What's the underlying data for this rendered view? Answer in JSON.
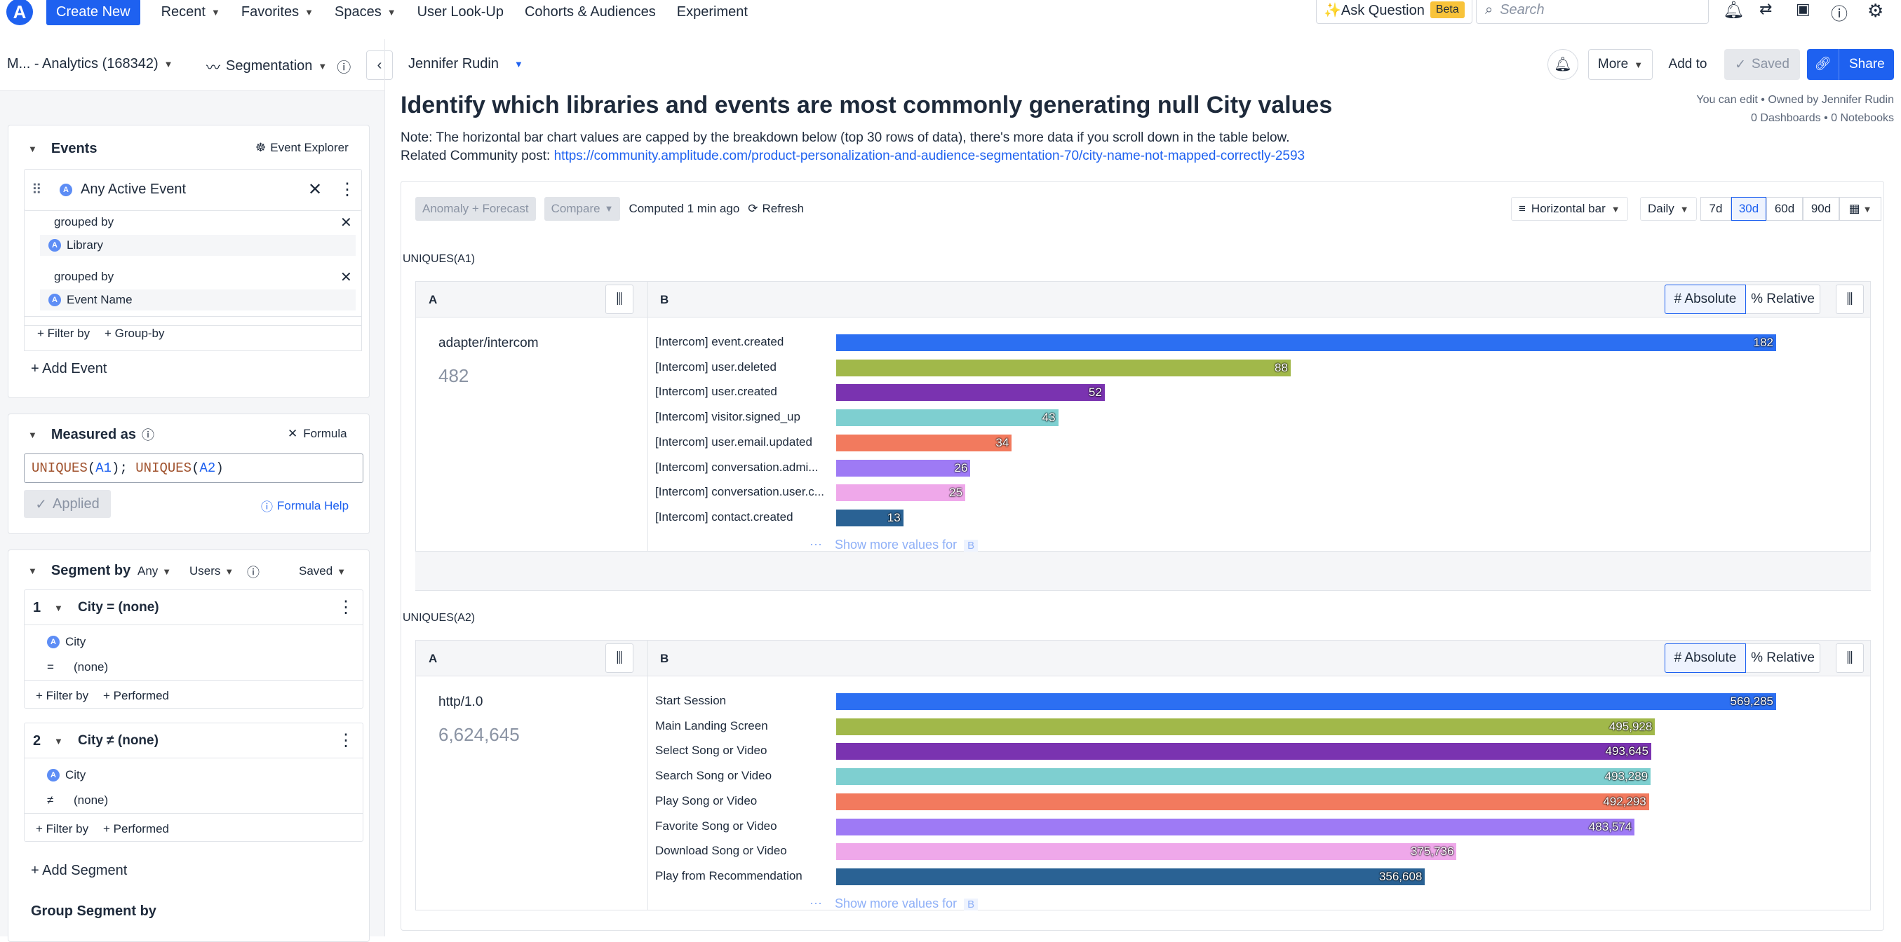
{
  "nav": {
    "logo_letter": "A",
    "create_label": "Create New",
    "items": [
      "Recent",
      "Favorites",
      "Spaces",
      "User Look-Up",
      "Cohorts & Audiences",
      "Experiment"
    ],
    "ask_label": "✨Ask Question",
    "beta_label": "Beta",
    "search_placeholder": "Search"
  },
  "breadcrumb": {
    "project": "M... - Analytics (168342)",
    "chart_type": "Segmentation",
    "owner": "Jennifer Rudin"
  },
  "header_actions": {
    "more": "More",
    "add_to": "Add to",
    "saved": "Saved",
    "share": "Share",
    "edit_info": "You can edit • Owned by Jennifer Rudin",
    "dashboards_info": "0 Dashboards • 0 Notebooks"
  },
  "events": {
    "title": "Events",
    "explorer": "Event Explorer",
    "event_name": "Any Active Event",
    "group1_label": "grouped by",
    "group1_value": "Library",
    "group2_label": "grouped by",
    "group2_value": "Event Name",
    "filter_by": "+ Filter by",
    "group_by": "+ Group-by",
    "add_event": "+ Add Event"
  },
  "measured": {
    "title": "Measured as",
    "formula_btn": "Formula",
    "formula_parts": [
      {
        "text": "UNIQUES",
        "color": "#a0522d"
      },
      {
        "text": "(",
        "color": "#1e2a3b"
      },
      {
        "text": "A1",
        "color": "#1e61f0"
      },
      {
        "text": "); ",
        "color": "#1e2a3b"
      },
      {
        "text": "UNIQUES",
        "color": "#a0522d"
      },
      {
        "text": "(",
        "color": "#1e2a3b"
      },
      {
        "text": "A2",
        "color": "#1e61f0"
      },
      {
        "text": ")",
        "color": "#1e2a3b"
      }
    ],
    "applied": "Applied",
    "help": "Formula Help"
  },
  "segment": {
    "title": "Segment by",
    "any": "Any",
    "users": "Users",
    "saved": "Saved",
    "segments": [
      {
        "num": "1",
        "name": "City = (none)",
        "prop": "City",
        "op": "=",
        "val": "(none)"
      },
      {
        "num": "2",
        "name": "City ≠ (none)",
        "prop": "City",
        "op": "≠",
        "val": "(none)"
      }
    ],
    "filter_by": "+ Filter by",
    "performed": "+ Performed",
    "add_segment": "+ Add Segment",
    "group_segment": "Group Segment by"
  },
  "main": {
    "title": "Identify which libraries and events are most commonly generating null City values",
    "note": "Note: The horizontal bar chart values are capped by the breakdown below (top 30 rows of data), there's more data if you scroll down in the table below.",
    "related_prefix": "Related Community post: ",
    "related_link": "https://community.amplitude.com/product-personalization-and-audience-segmentation-70/city-name-not-mapped-correctly-2593"
  },
  "toolbar": {
    "anomaly": "Anomaly + Forecast",
    "compare": "Compare",
    "computed": "Computed 1 min ago",
    "refresh": "Refresh",
    "chart_kind": "Horizontal bar",
    "interval": "Daily",
    "ranges": [
      "7d",
      "30d",
      "60d",
      "90d"
    ],
    "active_range": "30d"
  },
  "table_labels": {
    "col_a": "A",
    "col_b": "B",
    "absolute": "# Absolute",
    "relative": "% Relative",
    "show_more": "Show more values for",
    "show_more_tag": "B"
  },
  "chart_data": [
    {
      "type": "bar",
      "orientation": "horizontal",
      "title": "UNIQUES(A1)",
      "group_label": "adapter/intercom",
      "group_total": "482",
      "max": 182,
      "categories": [
        "[Intercom] event.created",
        "[Intercom] user.deleted",
        "[Intercom] user.created",
        "[Intercom] visitor.signed_up",
        "[Intercom] user.email.updated",
        "[Intercom] conversation.admi...",
        "[Intercom] conversation.user.c...",
        "[Intercom] contact.created"
      ],
      "values": [
        182,
        88,
        52,
        43,
        34,
        26,
        25,
        13
      ],
      "labels": [
        "182",
        "88",
        "52",
        "43",
        "34",
        "26",
        "25",
        "13"
      ],
      "colors": [
        "#2c6ff2",
        "#a1b84a",
        "#7a33b0",
        "#7ecfd0",
        "#f27a5e",
        "#9e7af5",
        "#efa8ea",
        "#2a6294"
      ]
    },
    {
      "type": "bar",
      "orientation": "horizontal",
      "title": "UNIQUES(A2)",
      "group_label": "http/1.0",
      "group_total": "6,624,645",
      "max": 569285,
      "categories": [
        "Start Session",
        "Main Landing Screen",
        "Select Song or Video",
        "Search Song or Video",
        "Play Song or Video",
        "Favorite Song or Video",
        "Download Song or Video",
        "Play from Recommendation"
      ],
      "values": [
        569285,
        495928,
        493645,
        493289,
        492293,
        483574,
        375736,
        356608
      ],
      "labels": [
        "569,285",
        "495,928",
        "493,645",
        "493,289",
        "492,293",
        "483,574",
        "375,736",
        "356,608"
      ],
      "colors": [
        "#2c6ff2",
        "#a1b84a",
        "#7a33b0",
        "#7ecfd0",
        "#f27a5e",
        "#9e7af5",
        "#efa8ea",
        "#2a6294"
      ]
    }
  ]
}
